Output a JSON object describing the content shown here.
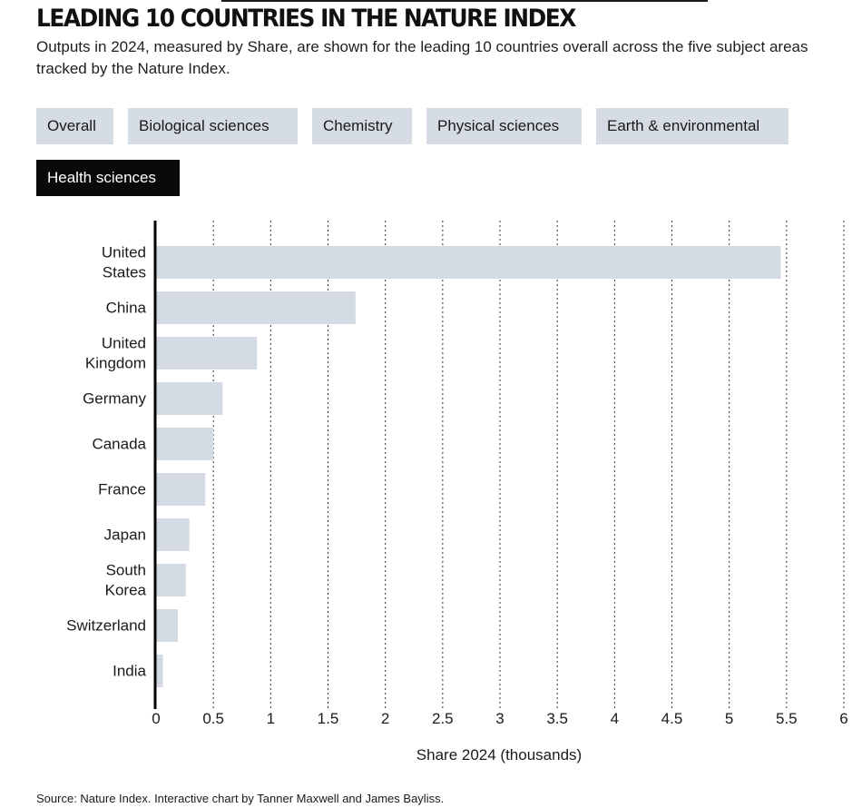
{
  "header": {
    "title": "LEADING 10 COUNTRIES IN THE NATURE INDEX",
    "subtitle": "Outputs in 2024, measured by Share, are shown for the leading 10 countries overall across the five subject areas tracked by the Nature Index."
  },
  "tabs": [
    {
      "label": "Overall",
      "active": false
    },
    {
      "label": "Biological sciences",
      "active": false
    },
    {
      "label": "Chemistry",
      "active": false
    },
    {
      "label": "Physical sciences",
      "active": false
    },
    {
      "label": "Earth & environmental",
      "active": false
    },
    {
      "label": "Health sciences",
      "active": true
    }
  ],
  "colors": {
    "bar": "#d4dae3",
    "axis": "#000000",
    "grid": "#333333",
    "active_tab": "#0a0a0a",
    "tab": "#d6dce4"
  },
  "chart_data": {
    "type": "bar",
    "orientation": "horizontal",
    "categories": [
      "United States",
      "China",
      "United Kingdom",
      "Germany",
      "Canada",
      "France",
      "Japan",
      "South Korea",
      "Switzerland",
      "India"
    ],
    "category_lines": [
      [
        "United",
        "States"
      ],
      [
        "China"
      ],
      [
        "United",
        "Kingdom"
      ],
      [
        "Germany"
      ],
      [
        "Canada"
      ],
      [
        "France"
      ],
      [
        "Japan"
      ],
      [
        "South",
        "Korea"
      ],
      [
        "Switzerland"
      ],
      [
        "India"
      ]
    ],
    "values": [
      5.45,
      1.74,
      0.88,
      0.58,
      0.5,
      0.43,
      0.29,
      0.26,
      0.19,
      0.06
    ],
    "xlabel": "Share 2024 (thousands)",
    "xlim": [
      0,
      6
    ],
    "xticks": [
      0,
      0.5,
      1,
      1.5,
      2,
      2.5,
      3,
      3.5,
      4,
      4.5,
      5,
      5.5,
      6
    ],
    "xtick_labels": [
      "0",
      "0.5",
      "1",
      "1.5",
      "2",
      "2.5",
      "3",
      "3.5",
      "4",
      "4.5",
      "5",
      "5.5",
      "6"
    ],
    "grid": "vertical dotted"
  },
  "footer": {
    "source": "Source: Nature Index. Interactive chart by Tanner Maxwell and James Bayliss."
  }
}
